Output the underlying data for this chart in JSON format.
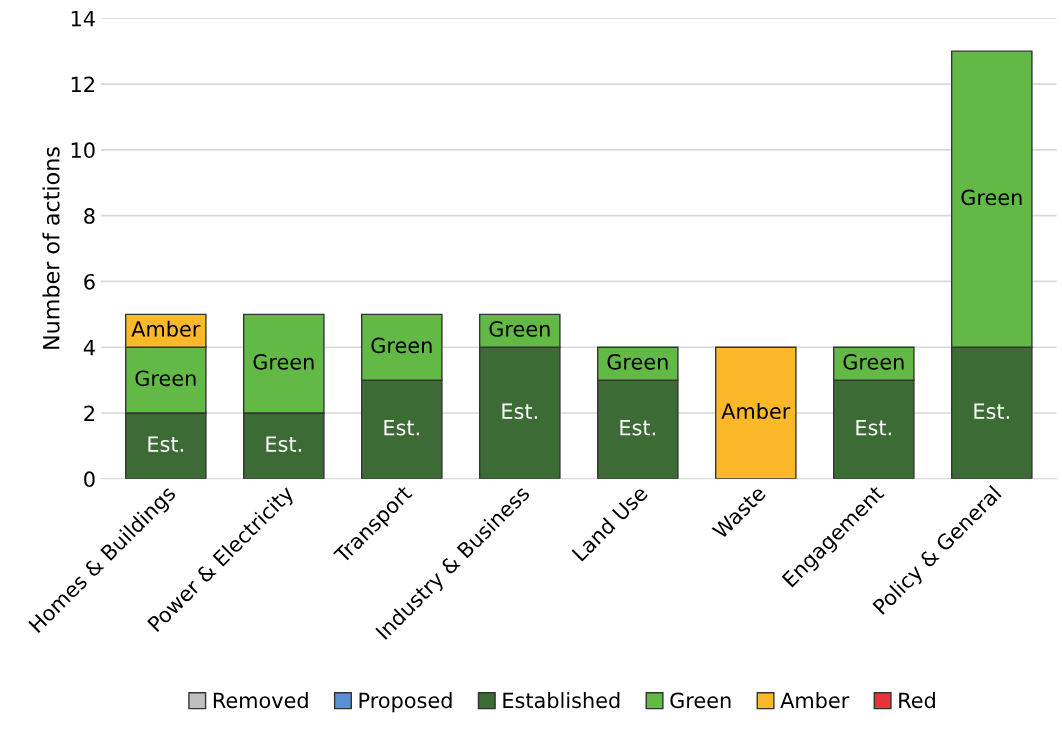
{
  "chart_data": {
    "type": "bar",
    "stacked": true,
    "ylabel": "Number of actions",
    "categories": [
      "Homes & Buildings",
      "Power & Electricity",
      "Transport",
      "Industry & Business",
      "Land Use",
      "Waste",
      "Engagement",
      "Policy & General"
    ],
    "series": [
      {
        "name": "Removed",
        "color": "#bfbfbf",
        "values": [
          0,
          0,
          0,
          0,
          0,
          0,
          0,
          0
        ]
      },
      {
        "name": "Proposed",
        "color": "#5b8fd8",
        "values": [
          0,
          0,
          0,
          0,
          0,
          0,
          0,
          0
        ]
      },
      {
        "name": "Established",
        "color": "#3d6b35",
        "values": [
          2,
          2,
          3,
          4,
          3,
          0,
          3,
          4
        ],
        "value_labels": [
          "Est.",
          "Est.",
          "Est.",
          "Est.",
          "Est.",
          null,
          "Est.",
          "Est."
        ]
      },
      {
        "name": "Green",
        "color": "#62b946",
        "values": [
          2,
          3,
          2,
          1,
          1,
          0,
          1,
          9
        ],
        "value_labels": [
          "Green",
          "Green",
          "Green",
          "Green",
          "Green",
          null,
          "Green",
          "Green"
        ]
      },
      {
        "name": "Amber",
        "color": "#fbb829",
        "values": [
          1,
          0,
          0,
          0,
          0,
          4,
          0,
          0
        ],
        "value_labels": [
          "Amber",
          null,
          null,
          null,
          null,
          "Amber",
          null,
          null
        ]
      },
      {
        "name": "Red",
        "color": "#e8323c",
        "values": [
          0,
          0,
          0,
          0,
          0,
          0,
          0,
          0
        ]
      }
    ],
    "ylim": [
      0,
      14
    ],
    "yticks": [
      0,
      2,
      4,
      6,
      8,
      10,
      12,
      14
    ],
    "grid": "y",
    "legend": "bottom"
  }
}
